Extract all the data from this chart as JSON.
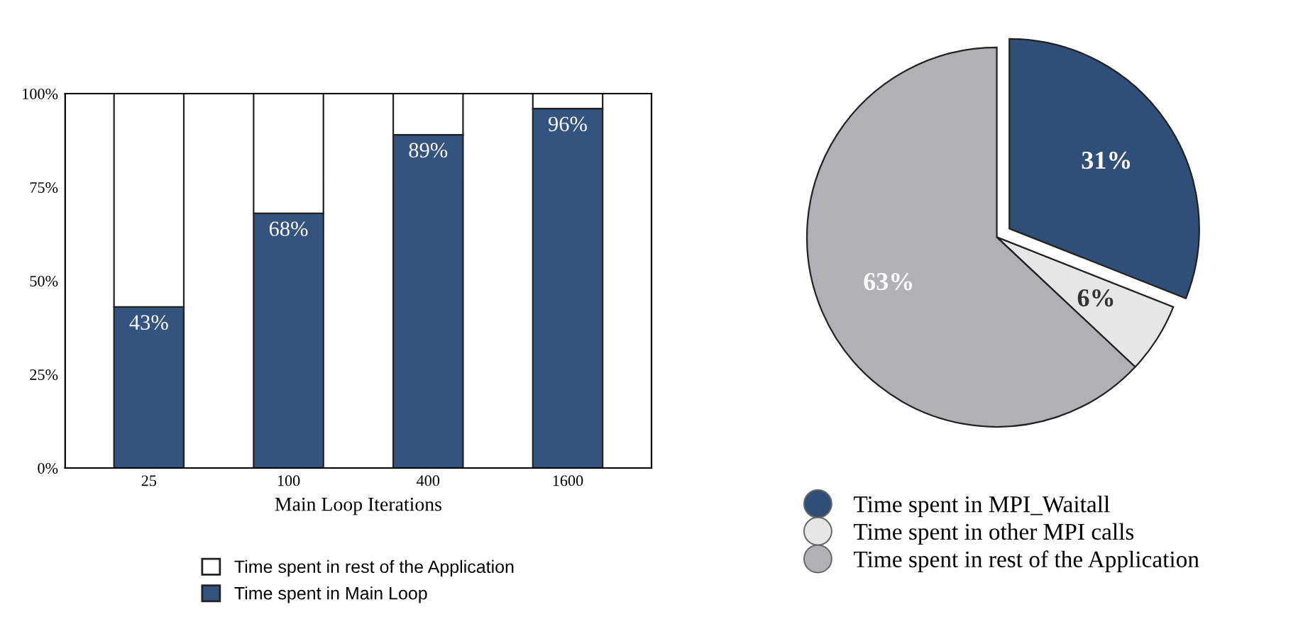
{
  "chart_data": [
    {
      "type": "bar",
      "stacked": true,
      "xlabel": "Main Loop Iterations",
      "categories": [
        "25",
        "100",
        "400",
        "1600"
      ],
      "series": [
        {
          "name": "Time spent in Main Loop",
          "color": "#34547f",
          "values": [
            43,
            68,
            89,
            96
          ],
          "value_labels": [
            "43%",
            "68%",
            "89%",
            "96%"
          ]
        },
        {
          "name": "Time spent in rest of the Application",
          "color": "#ffffff",
          "values": [
            57,
            32,
            11,
            4
          ]
        }
      ],
      "ylim": [
        0,
        100
      ],
      "yticks": [
        {
          "value": 0,
          "label": "0%"
        },
        {
          "value": 25,
          "label": "25%"
        },
        {
          "value": 50,
          "label": "50%"
        },
        {
          "value": 75,
          "label": "75%"
        },
        {
          "value": 100,
          "label": "100%"
        }
      ],
      "grid": false,
      "legend": "bottom"
    },
    {
      "type": "pie",
      "categories": [
        "Time spent in MPI_Waitall",
        "Time spent in other MPI calls",
        "Time spent in rest of the Application"
      ],
      "values": [
        31,
        6,
        63
      ],
      "value_labels": [
        "31%",
        "6%",
        "63%"
      ],
      "colors": [
        "#2f4f78",
        "#e6e6e6",
        "#b1b1b5"
      ],
      "legend": "bottom"
    }
  ]
}
